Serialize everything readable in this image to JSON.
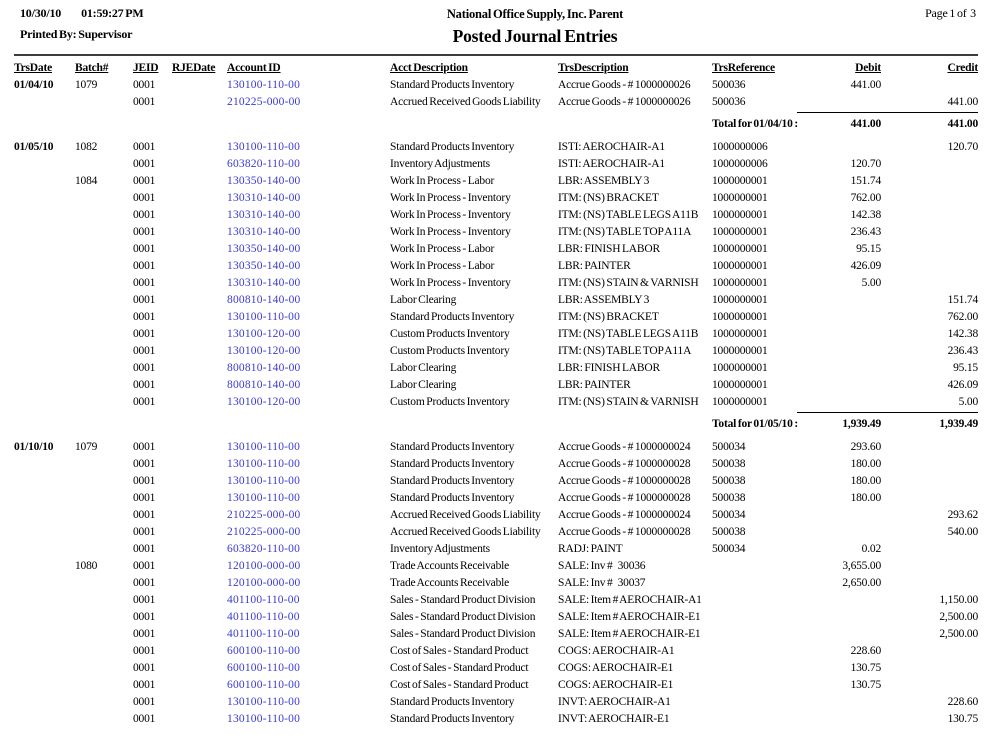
{
  "header": {
    "date": "10/30/10",
    "time": "01:59:27 PM",
    "printed_by": "Printed By: Supervisor",
    "company": "National Office Supply, Inc. Parent",
    "title": "Posted Journal Entries",
    "page": "Page 1 of  3"
  },
  "colors": {
    "account_link": "#3a3ad4",
    "rule": "#3b3b3b"
  },
  "table": {
    "columns": [
      "TrsDate",
      "Batch#",
      "JEID",
      "RJEDate",
      "Account ID",
      "Acct Description",
      "TrsDescription",
      "TrsReference",
      "Debit",
      "Credit"
    ],
    "rows": [
      {
        "type": "entry",
        "date": "01/04/10",
        "batch": "1079",
        "jeid": "0001",
        "rje": "",
        "account": "130100-110-00",
        "acct_desc": "Standard Products Inventory",
        "trs_desc": "Accrue Goods - # 1000000026",
        "ref": "500036",
        "debit": "441.00",
        "credit": ""
      },
      {
        "type": "entry",
        "date": "",
        "batch": "",
        "jeid": "0001",
        "rje": "",
        "account": "210225-000-00",
        "acct_desc": "Accrued Received Goods Liability",
        "trs_desc": "Accrue Goods - # 1000000026",
        "ref": "500036",
        "debit": "",
        "credit": "441.00"
      },
      {
        "type": "total",
        "label": "Total for 01/04/10 :",
        "debit": "441.00",
        "credit": "441.00"
      },
      {
        "type": "spacer"
      },
      {
        "type": "entry",
        "date": "01/05/10",
        "batch": "1082",
        "jeid": "0001",
        "rje": "",
        "account": "130100-110-00",
        "acct_desc": "Standard Products Inventory",
        "trs_desc": "ISTI: AEROCHAIR-A1",
        "ref": "1000000006",
        "debit": "",
        "credit": "120.70"
      },
      {
        "type": "entry",
        "date": "",
        "batch": "",
        "jeid": "0001",
        "rje": "",
        "account": "603820-110-00",
        "acct_desc": "Inventory Adjustments",
        "trs_desc": "ISTI: AEROCHAIR-A1",
        "ref": "1000000006",
        "debit": "120.70",
        "credit": ""
      },
      {
        "type": "entry",
        "date": "",
        "batch": "1084",
        "jeid": "0001",
        "rje": "",
        "account": "130350-140-00",
        "acct_desc": "Work In Process - Labor",
        "trs_desc": "LBR: ASSEMBLY 3",
        "ref": "1000000001",
        "debit": "151.74",
        "credit": ""
      },
      {
        "type": "entry",
        "date": "",
        "batch": "",
        "jeid": "0001",
        "rje": "",
        "account": "130310-140-00",
        "acct_desc": "Work In Process - Inventory",
        "trs_desc": "ITM: (NS) BRACKET",
        "ref": "1000000001",
        "debit": "762.00",
        "credit": ""
      },
      {
        "type": "entry",
        "date": "",
        "batch": "",
        "jeid": "0001",
        "rje": "",
        "account": "130310-140-00",
        "acct_desc": "Work In Process - Inventory",
        "trs_desc": "ITM: (NS) TABLE LEGS A11B",
        "ref": "1000000001",
        "debit": "142.38",
        "credit": ""
      },
      {
        "type": "entry",
        "date": "",
        "batch": "",
        "jeid": "0001",
        "rje": "",
        "account": "130310-140-00",
        "acct_desc": "Work In Process - Inventory",
        "trs_desc": "ITM: (NS) TABLE TOP A11A",
        "ref": "1000000001",
        "debit": "236.43",
        "credit": ""
      },
      {
        "type": "entry",
        "date": "",
        "batch": "",
        "jeid": "0001",
        "rje": "",
        "account": "130350-140-00",
        "acct_desc": "Work In Process - Labor",
        "trs_desc": "LBR: FINISH LABOR",
        "ref": "1000000001",
        "debit": "95.15",
        "credit": ""
      },
      {
        "type": "entry",
        "date": "",
        "batch": "",
        "jeid": "0001",
        "rje": "",
        "account": "130350-140-00",
        "acct_desc": "Work In Process - Labor",
        "trs_desc": "LBR: PAINTER",
        "ref": "1000000001",
        "debit": "426.09",
        "credit": ""
      },
      {
        "type": "entry",
        "date": "",
        "batch": "",
        "jeid": "0001",
        "rje": "",
        "account": "130310-140-00",
        "acct_desc": "Work In Process - Inventory",
        "trs_desc": "ITM: (NS) STAIN & VARNISH",
        "ref": "1000000001",
        "debit": "5.00",
        "credit": ""
      },
      {
        "type": "entry",
        "date": "",
        "batch": "",
        "jeid": "0001",
        "rje": "",
        "account": "800810-140-00",
        "acct_desc": "Labor Clearing",
        "trs_desc": "LBR: ASSEMBLY 3",
        "ref": "1000000001",
        "debit": "",
        "credit": "151.74"
      },
      {
        "type": "entry",
        "date": "",
        "batch": "",
        "jeid": "0001",
        "rje": "",
        "account": "130100-110-00",
        "acct_desc": "Standard Products Inventory",
        "trs_desc": "ITM: (NS) BRACKET",
        "ref": "1000000001",
        "debit": "",
        "credit": "762.00"
      },
      {
        "type": "entry",
        "date": "",
        "batch": "",
        "jeid": "0001",
        "rje": "",
        "account": "130100-120-00",
        "acct_desc": "Custom Products Inventory",
        "trs_desc": "ITM: (NS) TABLE LEGS A11B",
        "ref": "1000000001",
        "debit": "",
        "credit": "142.38"
      },
      {
        "type": "entry",
        "date": "",
        "batch": "",
        "jeid": "0001",
        "rje": "",
        "account": "130100-120-00",
        "acct_desc": "Custom Products Inventory",
        "trs_desc": "ITM: (NS) TABLE TOP A11A",
        "ref": "1000000001",
        "debit": "",
        "credit": "236.43"
      },
      {
        "type": "entry",
        "date": "",
        "batch": "",
        "jeid": "0001",
        "rje": "",
        "account": "800810-140-00",
        "acct_desc": "Labor Clearing",
        "trs_desc": "LBR: FINISH LABOR",
        "ref": "1000000001",
        "debit": "",
        "credit": "95.15"
      },
      {
        "type": "entry",
        "date": "",
        "batch": "",
        "jeid": "0001",
        "rje": "",
        "account": "800810-140-00",
        "acct_desc": "Labor Clearing",
        "trs_desc": "LBR: PAINTER",
        "ref": "1000000001",
        "debit": "",
        "credit": "426.09"
      },
      {
        "type": "entry",
        "date": "",
        "batch": "",
        "jeid": "0001",
        "rje": "",
        "account": "130100-120-00",
        "acct_desc": "Custom Products Inventory",
        "trs_desc": "ITM: (NS) STAIN & VARNISH",
        "ref": "1000000001",
        "debit": "",
        "credit": "5.00"
      },
      {
        "type": "total",
        "label": "Total for 01/05/10 :",
        "debit": "1,939.49",
        "credit": "1,939.49"
      },
      {
        "type": "spacer"
      },
      {
        "type": "entry",
        "date": "01/10/10",
        "batch": "1079",
        "jeid": "0001",
        "rje": "",
        "account": "130100-110-00",
        "acct_desc": "Standard Products Inventory",
        "trs_desc": "Accrue Goods - # 1000000024",
        "ref": "500034",
        "debit": "293.60",
        "credit": ""
      },
      {
        "type": "entry",
        "date": "",
        "batch": "",
        "jeid": "0001",
        "rje": "",
        "account": "130100-110-00",
        "acct_desc": "Standard Products Inventory",
        "trs_desc": "Accrue Goods - # 1000000028",
        "ref": "500038",
        "debit": "180.00",
        "credit": ""
      },
      {
        "type": "entry",
        "date": "",
        "batch": "",
        "jeid": "0001",
        "rje": "",
        "account": "130100-110-00",
        "acct_desc": "Standard Products Inventory",
        "trs_desc": "Accrue Goods - # 1000000028",
        "ref": "500038",
        "debit": "180.00",
        "credit": ""
      },
      {
        "type": "entry",
        "date": "",
        "batch": "",
        "jeid": "0001",
        "rje": "",
        "account": "130100-110-00",
        "acct_desc": "Standard Products Inventory",
        "trs_desc": "Accrue Goods - # 1000000028",
        "ref": "500038",
        "debit": "180.00",
        "credit": ""
      },
      {
        "type": "entry",
        "date": "",
        "batch": "",
        "jeid": "0001",
        "rje": "",
        "account": "210225-000-00",
        "acct_desc": "Accrued Received Goods Liability",
        "trs_desc": "Accrue Goods - # 1000000024",
        "ref": "500034",
        "debit": "",
        "credit": "293.62"
      },
      {
        "type": "entry",
        "date": "",
        "batch": "",
        "jeid": "0001",
        "rje": "",
        "account": "210225-000-00",
        "acct_desc": "Accrued Received Goods Liability",
        "trs_desc": "Accrue Goods - # 1000000028",
        "ref": "500038",
        "debit": "",
        "credit": "540.00"
      },
      {
        "type": "entry",
        "date": "",
        "batch": "",
        "jeid": "0001",
        "rje": "",
        "account": "603820-110-00",
        "acct_desc": "Inventory Adjustments",
        "trs_desc": "RADJ: PAINT",
        "ref": "500034",
        "debit": "0.02",
        "credit": ""
      },
      {
        "type": "entry",
        "date": "",
        "batch": "1080",
        "jeid": "0001",
        "rje": "",
        "account": "120100-000-00",
        "acct_desc": "Trade Accounts Receivable",
        "trs_desc": "SALE: Inv #   30036",
        "ref": "",
        "debit": "3,655.00",
        "credit": ""
      },
      {
        "type": "entry",
        "date": "",
        "batch": "",
        "jeid": "0001",
        "rje": "",
        "account": "120100-000-00",
        "acct_desc": "Trade Accounts Receivable",
        "trs_desc": "SALE: Inv #   30037",
        "ref": "",
        "debit": "2,650.00",
        "credit": ""
      },
      {
        "type": "entry",
        "date": "",
        "batch": "",
        "jeid": "0001",
        "rje": "",
        "account": "401100-110-00",
        "acct_desc": "Sales - Standard Product Division",
        "trs_desc": "SALE: Item # AEROCHAIR-A1",
        "ref": "",
        "debit": "",
        "credit": "1,150.00"
      },
      {
        "type": "entry",
        "date": "",
        "batch": "",
        "jeid": "0001",
        "rje": "",
        "account": "401100-110-00",
        "acct_desc": "Sales - Standard Product Division",
        "trs_desc": "SALE: Item # AEROCHAIR-E1",
        "ref": "",
        "debit": "",
        "credit": "2,500.00"
      },
      {
        "type": "entry",
        "date": "",
        "batch": "",
        "jeid": "0001",
        "rje": "",
        "account": "401100-110-00",
        "acct_desc": "Sales - Standard Product Division",
        "trs_desc": "SALE: Item # AEROCHAIR-E1",
        "ref": "",
        "debit": "",
        "credit": "2,500.00"
      },
      {
        "type": "entry",
        "date": "",
        "batch": "",
        "jeid": "0001",
        "rje": "",
        "account": "600100-110-00",
        "acct_desc": "Cost of Sales - Standard Product",
        "trs_desc": "COGS: AEROCHAIR-A1",
        "ref": "",
        "debit": "228.60",
        "credit": ""
      },
      {
        "type": "entry",
        "date": "",
        "batch": "",
        "jeid": "0001",
        "rje": "",
        "account": "600100-110-00",
        "acct_desc": "Cost of Sales - Standard Product",
        "trs_desc": "COGS: AEROCHAIR-E1",
        "ref": "",
        "debit": "130.75",
        "credit": ""
      },
      {
        "type": "entry",
        "date": "",
        "batch": "",
        "jeid": "0001",
        "rje": "",
        "account": "600100-110-00",
        "acct_desc": "Cost of Sales - Standard Product",
        "trs_desc": "COGS: AEROCHAIR-E1",
        "ref": "",
        "debit": "130.75",
        "credit": ""
      },
      {
        "type": "entry",
        "date": "",
        "batch": "",
        "jeid": "0001",
        "rje": "",
        "account": "130100-110-00",
        "acct_desc": "Standard Products Inventory",
        "trs_desc": "INVT: AEROCHAIR-A1",
        "ref": "",
        "debit": "",
        "credit": "228.60"
      },
      {
        "type": "entry",
        "date": "",
        "batch": "",
        "jeid": "0001",
        "rje": "",
        "account": "130100-110-00",
        "acct_desc": "Standard Products Inventory",
        "trs_desc": "INVT: AEROCHAIR-E1",
        "ref": "",
        "debit": "",
        "credit": "130.75"
      }
    ]
  }
}
